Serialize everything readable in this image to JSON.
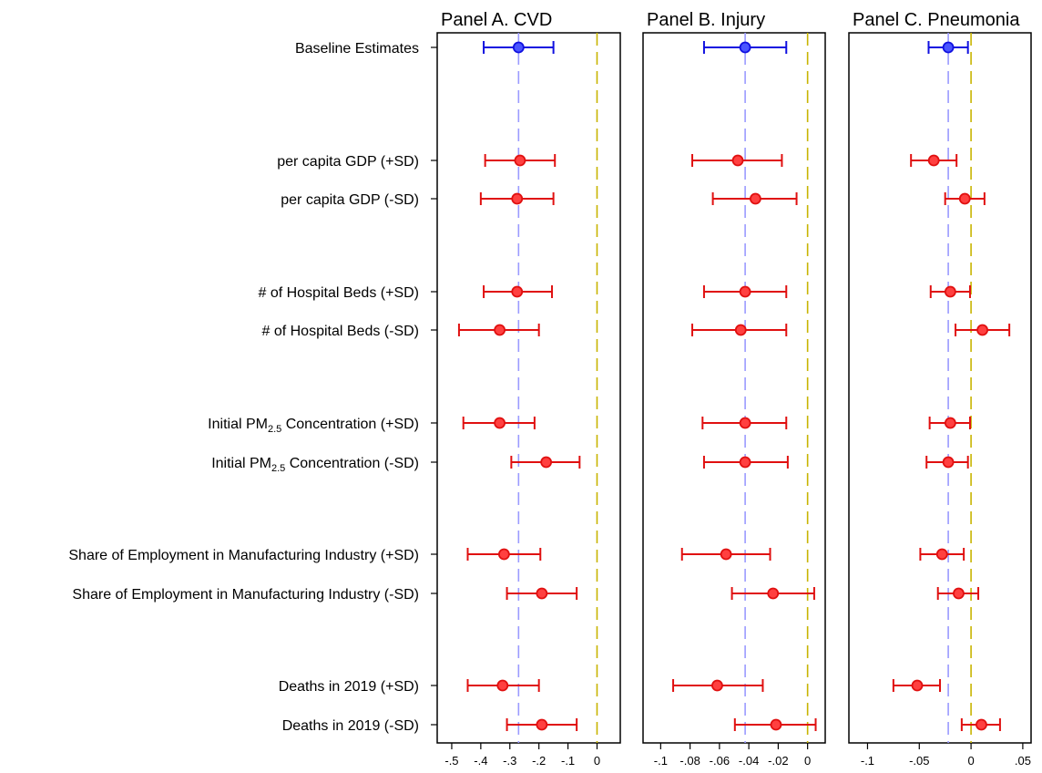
{
  "chart_data": {
    "type": "scatter",
    "style": "coefficient-plot-with-confidence-intervals",
    "colors": {
      "baseline": "#1010e0",
      "heterogeneity": "#e01010",
      "point_fill_baseline": "#4a55ff",
      "point_fill_het": "#ff4040",
      "baseline_ref_line": "#9a9aff",
      "zero_line": "#c8b400"
    },
    "row_labels": [
      {
        "label": "Baseline Estimates"
      },
      {
        "label": "per capita GDP (+SD)"
      },
      {
        "label": "per capita GDP (-SD)"
      },
      {
        "label": "# of Hospital Beds (+SD)"
      },
      {
        "label": "# of Hospital Beds (-SD)"
      },
      {
        "label_pre": "Initial PM",
        "label_sub": "2.5",
        "label_post": " Concentration (+SD)"
      },
      {
        "label_pre": "Initial PM",
        "label_sub": "2.5",
        "label_post": " Concentration (-SD)"
      },
      {
        "label": "Share of Employment in Manufacturing Industry (+SD)"
      },
      {
        "label": "Share of Employment in Manufacturing Industry (-SD)"
      },
      {
        "label": "Deaths in 2019 (+SD)"
      },
      {
        "label": "Deaths in 2019 (-SD)"
      }
    ],
    "panels": [
      {
        "title": "Panel A. CVD",
        "xlim": [
          -0.55,
          0.08
        ],
        "ticks": [
          -0.5,
          -0.4,
          -0.3,
          -0.2,
          -0.1,
          0
        ],
        "tick_labels": [
          "-.5",
          "-.4",
          "-.3",
          "-.2",
          "-.1",
          "0"
        ],
        "baseline_ref": -0.27,
        "zero_line": 0,
        "estimates": [
          {
            "est": -0.27,
            "lo": -0.39,
            "hi": -0.15
          },
          {
            "est": -0.265,
            "lo": -0.385,
            "hi": -0.145
          },
          {
            "est": -0.275,
            "lo": -0.4,
            "hi": -0.15
          },
          {
            "est": -0.275,
            "lo": -0.39,
            "hi": -0.155
          },
          {
            "est": -0.335,
            "lo": -0.475,
            "hi": -0.2
          },
          {
            "est": -0.335,
            "lo": -0.46,
            "hi": -0.215
          },
          {
            "est": -0.175,
            "lo": -0.295,
            "hi": -0.06
          },
          {
            "est": -0.32,
            "lo": -0.445,
            "hi": -0.195
          },
          {
            "est": -0.19,
            "lo": -0.31,
            "hi": -0.07
          },
          {
            "est": -0.325,
            "lo": -0.445,
            "hi": -0.2
          },
          {
            "est": -0.19,
            "lo": -0.31,
            "hi": -0.07
          }
        ]
      },
      {
        "title": "Panel B. Injury",
        "xlim": [
          -0.112,
          0.012
        ],
        "ticks": [
          -0.1,
          -0.08,
          -0.06,
          -0.04,
          -0.02,
          0
        ],
        "tick_labels": [
          "-.1",
          "-.08",
          "-.06",
          "-.04",
          "-.02",
          "0"
        ],
        "baseline_ref": -0.0425,
        "zero_line": 0,
        "estimates": [
          {
            "est": -0.0425,
            "lo": -0.0705,
            "hi": -0.0145
          },
          {
            "est": -0.0475,
            "lo": -0.0785,
            "hi": -0.0175
          },
          {
            "est": -0.0355,
            "lo": -0.0645,
            "hi": -0.0075
          },
          {
            "est": -0.0425,
            "lo": -0.0705,
            "hi": -0.0145
          },
          {
            "est": -0.0455,
            "lo": -0.0785,
            "hi": -0.0145
          },
          {
            "est": -0.0425,
            "lo": -0.0715,
            "hi": -0.0145
          },
          {
            "est": -0.0425,
            "lo": -0.0705,
            "hi": -0.0135
          },
          {
            "est": -0.0555,
            "lo": -0.0855,
            "hi": -0.0255
          },
          {
            "est": -0.0235,
            "lo": -0.0515,
            "hi": 0.0045
          },
          {
            "est": -0.0615,
            "lo": -0.0915,
            "hi": -0.0305
          },
          {
            "est": -0.0215,
            "lo": -0.0495,
            "hi": 0.0055
          }
        ]
      },
      {
        "title": "Panel C. Pneumonia",
        "xlim": [
          -0.118,
          0.058
        ],
        "ticks": [
          -0.1,
          -0.05,
          0,
          0.05
        ],
        "tick_labels": [
          "-.1",
          "-.05",
          "0",
          ".05"
        ],
        "baseline_ref": -0.022,
        "zero_line": 0,
        "estimates": [
          {
            "est": -0.022,
            "lo": -0.041,
            "hi": -0.003
          },
          {
            "est": -0.036,
            "lo": -0.058,
            "hi": -0.014
          },
          {
            "est": -0.006,
            "lo": -0.025,
            "hi": 0.013
          },
          {
            "est": -0.02,
            "lo": -0.039,
            "hi": -0.001
          },
          {
            "est": 0.011,
            "lo": -0.015,
            "hi": 0.037
          },
          {
            "est": -0.02,
            "lo": -0.04,
            "hi": -0.001
          },
          {
            "est": -0.022,
            "lo": -0.043,
            "hi": -0.003
          },
          {
            "est": -0.028,
            "lo": -0.049,
            "hi": -0.007
          },
          {
            "est": -0.012,
            "lo": -0.032,
            "hi": 0.007
          },
          {
            "est": -0.052,
            "lo": -0.075,
            "hi": -0.03
          },
          {
            "est": 0.01,
            "lo": -0.009,
            "hi": 0.028
          }
        ]
      }
    ]
  }
}
